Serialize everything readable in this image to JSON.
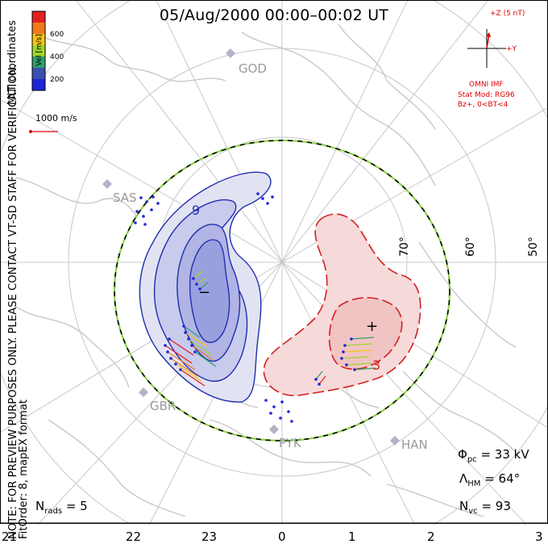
{
  "title": "05/Aug/2000 00:00–00:02 UT",
  "side_note": {
    "line1": "NOTE: FOR PREVIEW PURPOSES ONLY. PLEASE CONTACT VT-SD STAFF FOR VERIFICATION.",
    "line2": "FitOrder: 8, mapEX format"
  },
  "coord_label": "MLT coordinates",
  "velocity_scale": {
    "label": "Vel [m/s]",
    "ticks": [
      "600",
      "400",
      "200"
    ],
    "colors": [
      "#e62020",
      "#f07a1a",
      "#f5c518",
      "#9fd62a",
      "#2f9f6a",
      "#3a4fb0",
      "#1c25d9"
    ]
  },
  "reference_vector": {
    "label": "1000 m/s",
    "color": "#e00000"
  },
  "imf": {
    "z_label": "+Z (5 nT)",
    "y_label": "+Y",
    "source": "OMNI IMF",
    "model": "Stat Mod: RG96",
    "condition": "Bz+, 0<BT<4",
    "color": "#e00000"
  },
  "stations": [
    {
      "name": "GOD"
    },
    {
      "name": "SAS"
    },
    {
      "name": "GBR"
    },
    {
      "name": "PYK"
    },
    {
      "name": "HAN"
    }
  ],
  "latitude_labels": [
    "70°",
    "60°",
    "50°"
  ],
  "mlt_labels": [
    "21",
    "22",
    "23",
    "0",
    "1",
    "2",
    "3"
  ],
  "cells": {
    "negative": "−",
    "positive": "+",
    "contour_label_neg": "9",
    "contour_label_pos": "3"
  },
  "stats": {
    "phi_pc": {
      "symbol": "Φ",
      "sub": "pc",
      "value": "= 33 kV"
    },
    "lambda_hm": {
      "symbol": "Λ",
      "sub": "HM",
      "value": "= 64°"
    },
    "n_vc": {
      "symbol": "N",
      "sub": "vc",
      "value": "= 93"
    },
    "n_rads": {
      "symbol": "N",
      "sub": "rads",
      "value": "= 5"
    }
  },
  "colors": {
    "negative_cell": "#1f2fb0",
    "positive_cell": "#d42020",
    "boundary_green": "#8fd24a"
  }
}
